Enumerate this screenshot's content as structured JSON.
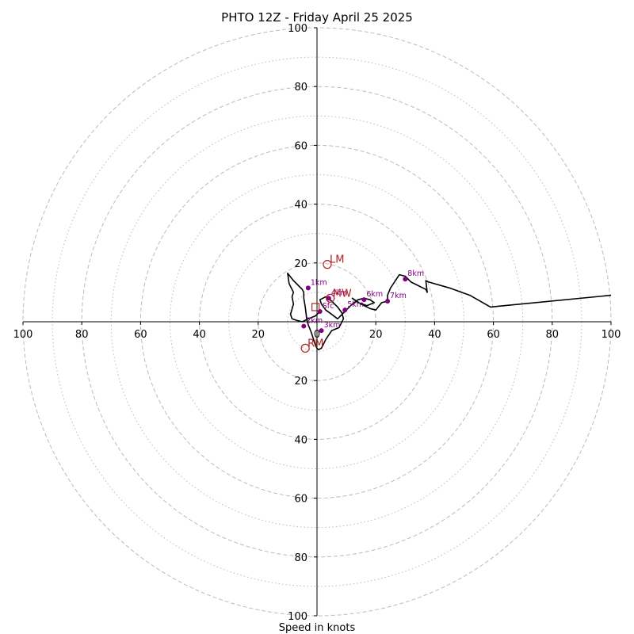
{
  "chart_data": {
    "type": "line",
    "title": "PHTO 12Z - Friday April 25 2025",
    "xlabel": "Speed in knots",
    "xlim": [
      -100,
      100
    ],
    "ylim": [
      -100,
      100
    ],
    "ring_major": [
      20,
      40,
      60,
      80,
      100
    ],
    "ring_minor": [
      10,
      30,
      50,
      70,
      90
    ],
    "x_tick_labels": [
      "100",
      "80",
      "60",
      "40",
      "20",
      "0",
      "20",
      "40",
      "60",
      "80",
      "100"
    ],
    "x_tick_values": [
      -100,
      -80,
      -60,
      -40,
      -20,
      0,
      20,
      40,
      60,
      80,
      100
    ],
    "y_tick_labels": [
      "100",
      "80",
      "60",
      "40",
      "20",
      "20",
      "40",
      "60",
      "80",
      "100"
    ],
    "y_tick_values": [
      100,
      80,
      60,
      40,
      20,
      -20,
      -40,
      -60,
      -80,
      -100
    ],
    "grid": true,
    "hodograph": {
      "u": [
        1,
        0.5,
        -0.5,
        -3,
        -5,
        -7,
        -8.5,
        -9,
        -8,
        -8.5,
        -8,
        -9.5,
        -10,
        -8,
        -6,
        -5,
        -4.5,
        -4.5,
        -4,
        -3.5,
        -3,
        -2,
        -1,
        -0.5,
        0,
        0.5,
        1.5,
        3,
        5,
        7.5,
        9,
        8.5,
        7,
        5,
        3,
        2,
        1,
        1.5,
        3,
        5,
        7,
        9.5,
        12,
        14,
        16,
        18,
        19.5,
        17,
        14,
        12,
        15,
        18,
        20,
        22,
        24,
        24,
        25,
        26,
        28,
        30,
        32,
        35,
        37,
        37.5,
        37,
        38,
        45,
        52,
        59,
        100
      ],
      "v": [
        3.5,
        3,
        2,
        1,
        0,
        0.5,
        1,
        2.5,
        6,
        8.5,
        10,
        13,
        16.5,
        14,
        12,
        11,
        10,
        8,
        5,
        1,
        -1,
        -3.5,
        -6.5,
        -8,
        -9,
        -9.5,
        -9,
        -6,
        -3,
        -2,
        1,
        3,
        5,
        7,
        8.5,
        8,
        7.5,
        6,
        4,
        2.5,
        1,
        3.5,
        6,
        7.5,
        8,
        7.5,
        6.5,
        5.5,
        6.5,
        8,
        6,
        4.5,
        4,
        6.5,
        7,
        9,
        11.5,
        13,
        16,
        15.5,
        13.5,
        12,
        11,
        10,
        14,
        13.5,
        11.5,
        9,
        5,
        9
      ]
    },
    "height_markers": [
      {
        "label": "Sfc",
        "u": 1,
        "v": 3.5
      },
      {
        "label": "1km",
        "u": -3,
        "v": 11.5
      },
      {
        "label": "2km",
        "u": -4.5,
        "v": -1.5
      },
      {
        "label": "3km",
        "u": 1.5,
        "v": -3
      },
      {
        "label": "4km",
        "u": 4,
        "v": 8
      },
      {
        "label": "5km",
        "u": 9.5,
        "v": 4
      },
      {
        "label": "6km",
        "u": 16,
        "v": 7.5
      },
      {
        "label": "7km",
        "u": 24,
        "v": 7
      },
      {
        "label": "8km",
        "u": 30,
        "v": 14.5
      }
    ],
    "motion_markers": [
      {
        "label": "LM",
        "u": 3.5,
        "v": 19.5,
        "shape": "circle"
      },
      {
        "label": "RM",
        "u": -4,
        "v": -9,
        "shape": "circle"
      },
      {
        "label": "MW",
        "u": 4.5,
        "v": 8,
        "shape": "circle"
      },
      {
        "label": "",
        "u": -0.5,
        "v": 5,
        "shape": "square"
      }
    ],
    "colors": {
      "hodograph": "#000000",
      "height_markers": "#800080",
      "motion_markers": "#b22222",
      "grid": "#bbbbbb",
      "axes": "#000000"
    }
  }
}
